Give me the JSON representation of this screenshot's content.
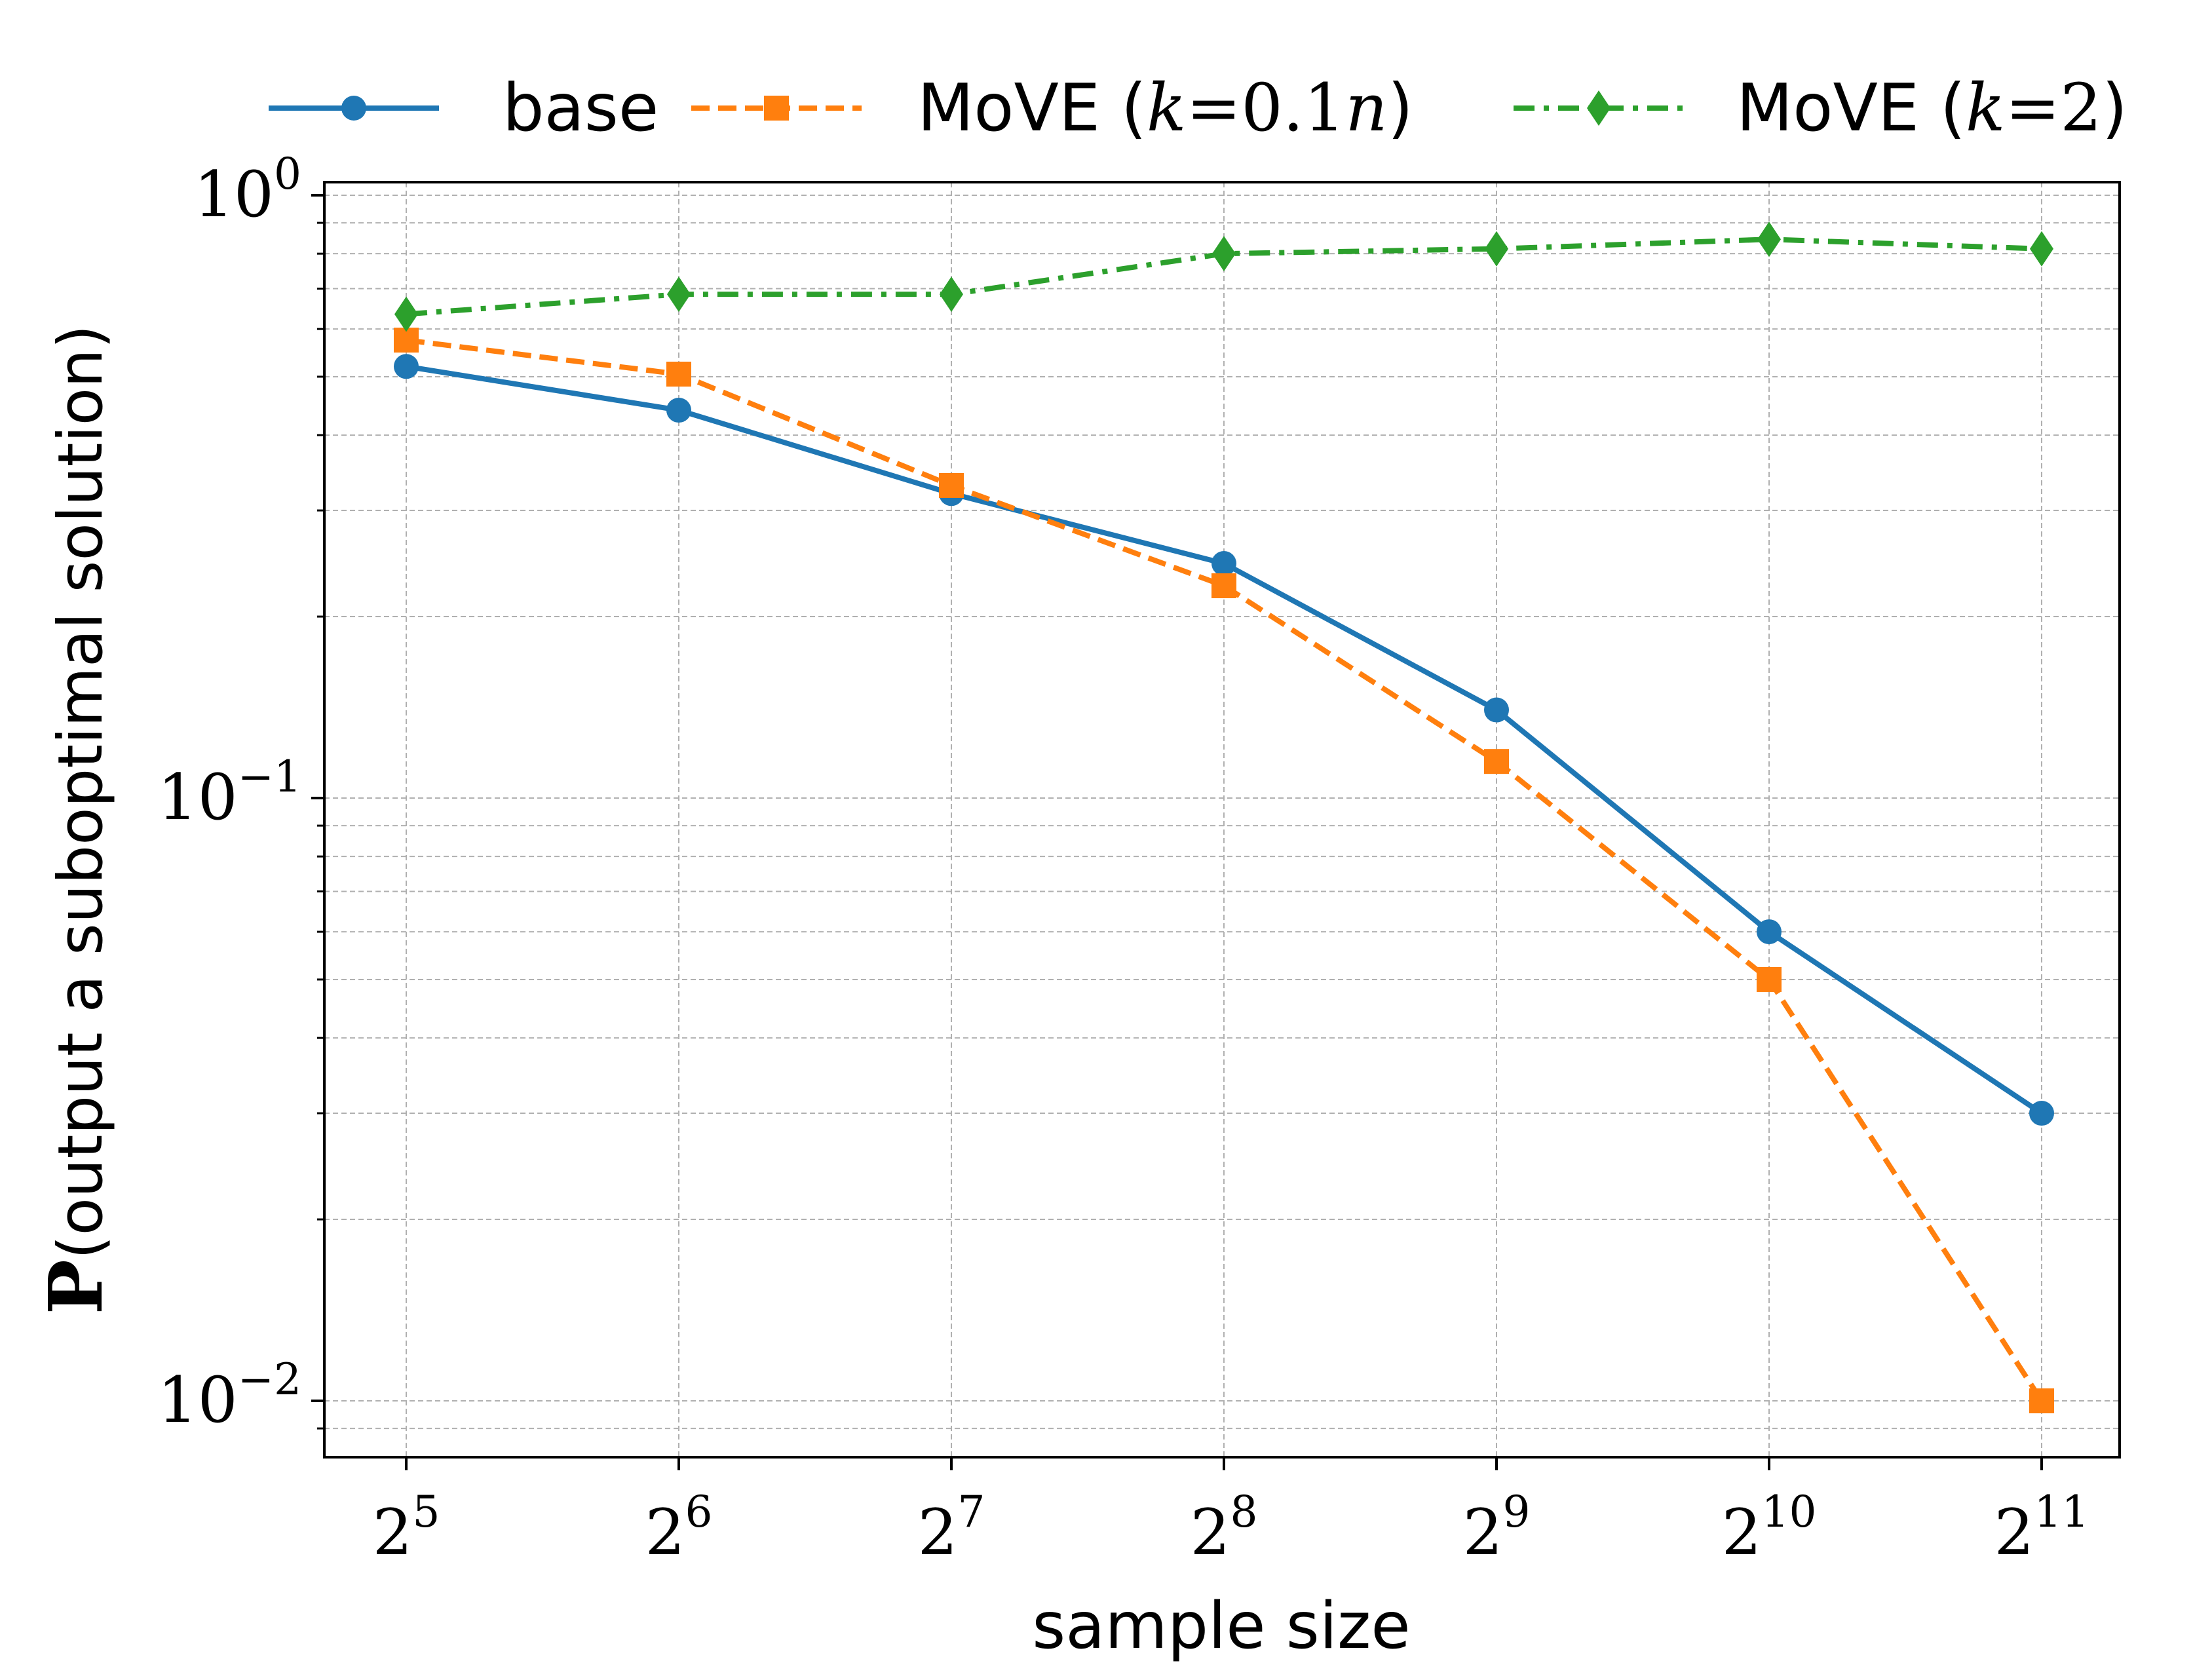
{
  "chart_data": {
    "type": "line",
    "title": "",
    "xlabel": "sample size",
    "ylabel": {
      "prefix": "P",
      "text": "(output a suboptimal solution)"
    },
    "x": [
      32,
      64,
      128,
      256,
      512,
      1024,
      2048
    ],
    "x_tick_labels": [
      {
        "base": "2",
        "exp": "5"
      },
      {
        "base": "2",
        "exp": "6"
      },
      {
        "base": "2",
        "exp": "7"
      },
      {
        "base": "2",
        "exp": "8"
      },
      {
        "base": "2",
        "exp": "9"
      },
      {
        "base": "2",
        "exp": "10"
      },
      {
        "base": "2",
        "exp": "11"
      }
    ],
    "x_scale": "log2",
    "y_scale": "log10",
    "ylim": [
      0.008,
      1.0
    ],
    "y_tick_labels": [
      {
        "base": "10",
        "exp": "0",
        "value": 1.0
      },
      {
        "base": "10",
        "exp": "−1",
        "value": 0.1
      },
      {
        "base": "10",
        "exp": "−2",
        "value": 0.01
      }
    ],
    "grid": true,
    "legend_placement": "top, above plot",
    "series": [
      {
        "name": "base",
        "color": "#1f77b4",
        "linestyle": "solid",
        "marker": "circle",
        "values": [
          0.52,
          0.44,
          0.32,
          0.245,
          0.14,
          0.06,
          0.03
        ]
      },
      {
        "name": "MoVE (k=0.1n)",
        "legend_parts": [
          "MoVE (",
          "k",
          "=0.1",
          "n",
          ")"
        ],
        "color": "#ff7f0e",
        "linestyle": "dashed",
        "marker": "square",
        "values": [
          0.575,
          0.505,
          0.33,
          0.225,
          0.115,
          0.05,
          0.01
        ]
      },
      {
        "name": "MoVE (k=2)",
        "legend_parts": [
          "MoVE (",
          "k",
          "=2",
          "",
          ")"
        ],
        "color": "#2ca02c",
        "linestyle": "dashdot",
        "marker": "diamond",
        "values": [
          0.635,
          0.685,
          0.685,
          0.8,
          0.815,
          0.845,
          0.815
        ]
      }
    ]
  }
}
